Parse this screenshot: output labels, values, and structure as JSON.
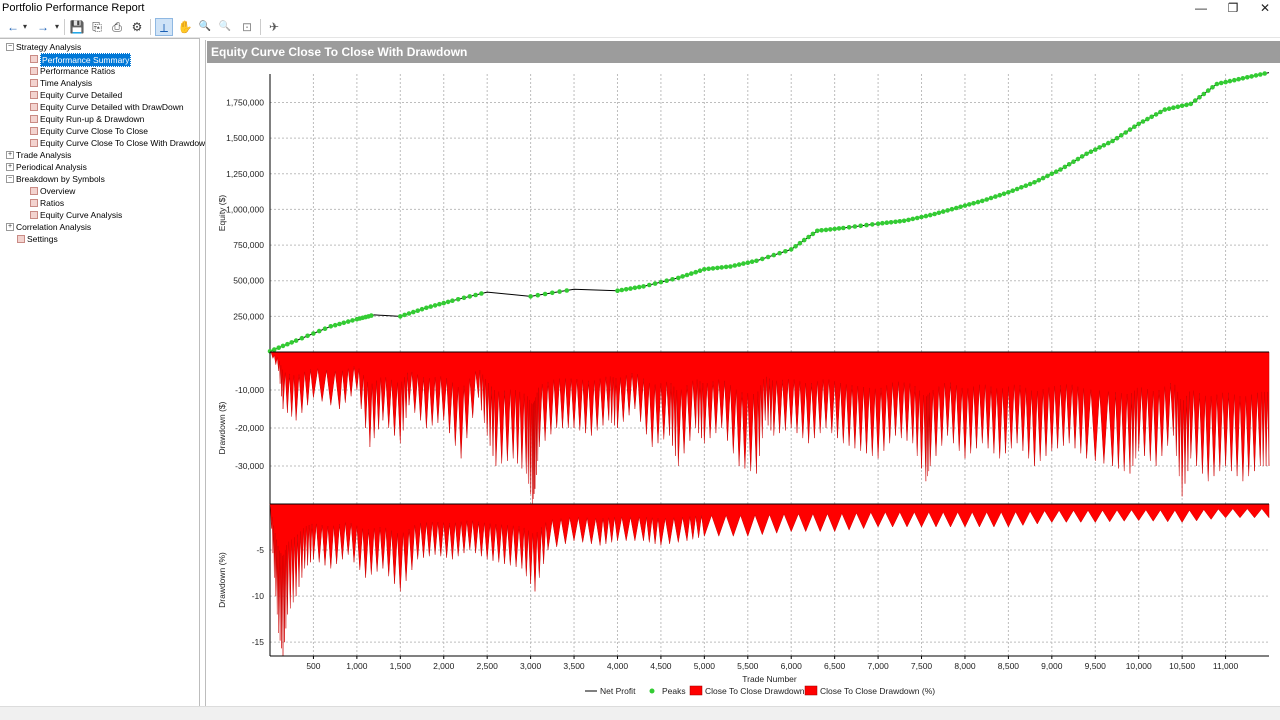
{
  "window": {
    "title": "Portfolio Performance Report",
    "controls": [
      "—",
      "❐",
      "✕"
    ]
  },
  "toolbar": {
    "back": "←",
    "back_menu": "▾",
    "forward": "→",
    "forward_menu": "▾",
    "save": "💾",
    "copy": "⎘",
    "print": "⎙",
    "settings": "⚙",
    "cursor": "⟂",
    "pan": "✋",
    "zoom_in": "🔍",
    "zoom_out": "🔍",
    "fit": "⊡",
    "export": "✈"
  },
  "tree": [
    {
      "label": "Strategy Analysis",
      "level": 0,
      "expander": "−"
    },
    {
      "label": "Performance Summary",
      "level": 1,
      "selected": true
    },
    {
      "label": "Performance Ratios",
      "level": 1
    },
    {
      "label": "Time Analysis",
      "level": 1
    },
    {
      "label": "Equity Curve Detailed",
      "level": 1
    },
    {
      "label": "Equity Curve Detailed with DrawDown",
      "level": 1
    },
    {
      "label": "Equity Run-up & Drawdown",
      "level": 1
    },
    {
      "label": "Equity Curve Close To Close",
      "level": 1
    },
    {
      "label": "Equity Curve Close To Close With Drawdown",
      "level": 1
    },
    {
      "label": "Trade Analysis",
      "level": 0,
      "expander": "+"
    },
    {
      "label": "Periodical Analysis",
      "level": 0,
      "expander": "+"
    },
    {
      "label": "Breakdown by Symbols",
      "level": 0,
      "expander": "−"
    },
    {
      "label": "Overview",
      "level": 1
    },
    {
      "label": "Ratios",
      "level": 1
    },
    {
      "label": "Equity Curve Analysis",
      "level": 1
    },
    {
      "label": "Correlation Analysis",
      "level": 0,
      "expander": "+"
    },
    {
      "label": "Settings",
      "level": 0,
      "expander": ""
    }
  ],
  "chart_header": "Equity Curve Close To Close With Drawdown",
  "chart_data": {
    "type": "line",
    "title": "Equity Curve Close To Close With Drawdown",
    "xlabel": "Trade Number",
    "x_ticks": [
      500,
      1000,
      1500,
      2000,
      2500,
      3000,
      3500,
      4000,
      4500,
      5000,
      5500,
      6000,
      6500,
      7000,
      7500,
      8000,
      8500,
      9000,
      9500,
      10000,
      10500,
      11000
    ],
    "x_tick_labels": [
      "500",
      "1,000",
      "1,500",
      "2,000",
      "2,500",
      "3,000",
      "3,500",
      "4,000",
      "4,500",
      "5,000",
      "5,500",
      "6,000",
      "6,500",
      "7,000",
      "7,500",
      "8,000",
      "8,500",
      "9,000",
      "9,500",
      "10,000",
      "10,500",
      "11,000"
    ],
    "xlim": [
      0,
      11500
    ],
    "grid": true,
    "legend_position": "bottom",
    "legend": [
      {
        "name": "Net Profit",
        "kind": "line",
        "color": "#000000"
      },
      {
        "name": "Peaks",
        "kind": "point",
        "color": "#33cc33"
      },
      {
        "name": "Close To Close Drawdown",
        "kind": "box",
        "color": "#ff0000"
      },
      {
        "name": "Close To Close Drawdown (%)",
        "kind": "box",
        "color": "#ff0000"
      }
    ],
    "panels": [
      {
        "id": "equity",
        "ylabel": "Equity ($)",
        "ylim": [
          0,
          1950000
        ],
        "y_ticks": [
          250000,
          500000,
          750000,
          1000000,
          1250000,
          1500000,
          1750000
        ],
        "y_tick_labels": [
          "250,000",
          "500,000",
          "750,000",
          "1,000,000",
          "1,250,000",
          "1,500,000",
          "1,750,000"
        ],
        "series": [
          {
            "name": "Net Profit",
            "x": [
              0,
              300,
              700,
              1000,
              1200,
              1500,
              1800,
              2100,
              2500,
              3000,
              3500,
              4000,
              4300,
              4700,
              5000,
              5300,
              5600,
              6000,
              6300,
              6600,
              7000,
              7300,
              7600,
              7900,
              8200,
              8500,
              8800,
              9100,
              9400,
              9700,
              10000,
              10300,
              10600,
              10900,
              11200,
              11500
            ],
            "y": [
              5000,
              80000,
              180000,
              230000,
              260000,
              250000,
              310000,
              360000,
              420000,
              390000,
              440000,
              430000,
              460000,
              520000,
              580000,
              600000,
              640000,
              720000,
              850000,
              870000,
              900000,
              920000,
              960000,
              1010000,
              1060000,
              1120000,
              1190000,
              1280000,
              1390000,
              1480000,
              1600000,
              1700000,
              1740000,
              1880000,
              1920000,
              1960000
            ]
          }
        ]
      },
      {
        "id": "drawdown_usd",
        "ylabel": "Drawdown ($)",
        "ylim": [
          -40000,
          0
        ],
        "y_ticks": [
          -10000,
          -20000,
          -30000
        ],
        "y_tick_labels": [
          "-10,000",
          "-20,000",
          "-30,000"
        ],
        "series": [
          {
            "name": "Close To Close Drawdown",
            "x": [
              0,
              100,
              150,
              300,
              500,
              800,
              1000,
              1150,
              1300,
              1500,
              1600,
              1800,
              2000,
              2200,
              2400,
              2500,
              2600,
              2800,
              2950,
              3020,
              3050,
              3100,
              3300,
              3500,
              3700,
              3900,
              4000,
              4200,
              4400,
              4600,
              4700,
              4900,
              5000,
              5200,
              5400,
              5600,
              5700,
              5800,
              6000,
              6200,
              6400,
              6600,
              6800,
              7000,
              7200,
              7400,
              7550,
              7600,
              7800,
              8000,
              8200,
              8400,
              8600,
              8800,
              9000,
              9200,
              9400,
              9700,
              9900,
              10000,
              10200,
              10400,
              10500,
              10600,
              10800,
              11000,
              11200,
              11400,
              11500
            ],
            "y": [
              0,
              -5000,
              -15000,
              -18000,
              -12000,
              -15000,
              -10000,
              -25000,
              -18000,
              -24000,
              -14000,
              -20000,
              -18000,
              -28000,
              -12000,
              -22000,
              -30000,
              -28000,
              -32000,
              -40000,
              -36000,
              -25000,
              -20000,
              -20000,
              -22000,
              -18000,
              -20000,
              -15000,
              -25000,
              -22000,
              -30000,
              -20000,
              -24000,
              -20000,
              -30000,
              -32000,
              -18000,
              -22000,
              -20000,
              -24000,
              -20000,
              -24000,
              -26000,
              -28000,
              -22000,
              -24000,
              -34000,
              -30000,
              -22000,
              -28000,
              -24000,
              -28000,
              -24000,
              -30000,
              -26000,
              -24000,
              -28000,
              -30000,
              -32000,
              -26000,
              -30000,
              -22000,
              -38000,
              -28000,
              -34000,
              -30000,
              -34000,
              -30000,
              -30000
            ]
          }
        ]
      },
      {
        "id": "drawdown_pct",
        "ylabel": "Drawdown (%)",
        "ylim": [
          -16.5,
          0
        ],
        "y_ticks": [
          -5,
          -10,
          -15
        ],
        "y_tick_labels": [
          "-5",
          "-10",
          "-15"
        ],
        "series": [
          {
            "name": "Close To Close Drawdown (%)",
            "x": [
              0,
              50,
              100,
              150,
              200,
              300,
              400,
              500,
              700,
              900,
              1100,
              1300,
              1500,
              1700,
              1900,
              2100,
              2300,
              2500,
              2700,
              2900,
              3050,
              3200,
              3500,
              3800,
              4000,
              4300,
              4500,
              4800,
              5000,
              5500,
              6000,
              6500,
              7000,
              7500,
              8000,
              8500,
              9000,
              9500,
              10000,
              10500,
              11000,
              11500
            ],
            "y": [
              0,
              -8,
              -14,
              -16.5,
              -12,
              -10,
              -7,
              -6,
              -7,
              -5.5,
              -8,
              -7,
              -9.5,
              -6,
              -5.5,
              -6,
              -5,
              -6,
              -6.5,
              -7,
              -9.5,
              -5,
              -4,
              -4.5,
              -4,
              -4,
              -4.5,
              -4,
              -3.5,
              -3.5,
              -3,
              -3,
              -2.5,
              -2.5,
              -2.5,
              -2.5,
              -2,
              -2,
              -1.8,
              -2,
              -1.5,
              -1.5
            ]
          }
        ]
      }
    ]
  }
}
